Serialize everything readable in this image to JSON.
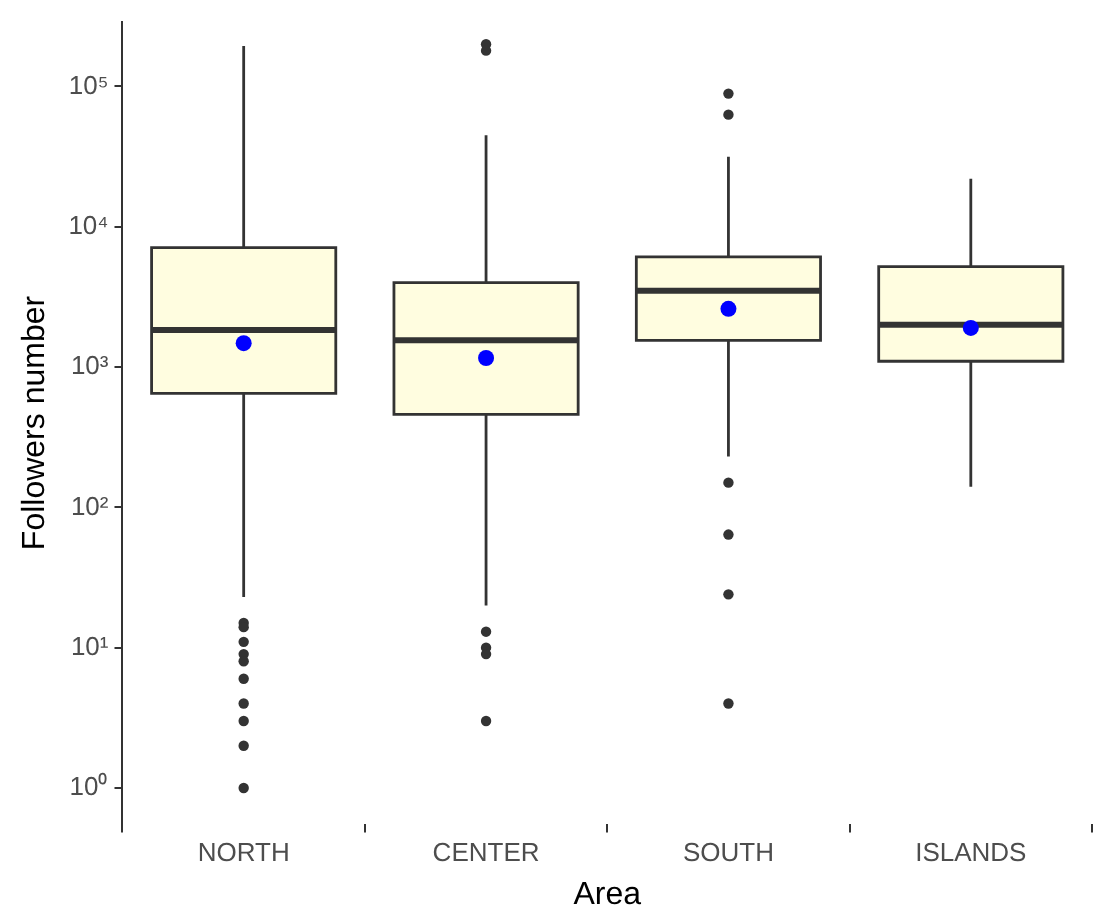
{
  "chart_data": {
    "type": "box",
    "xlabel": "Area",
    "ylabel": "Followers number",
    "categories": [
      "NORTH",
      "CENTER",
      "SOUTH",
      "ISLANDS"
    ],
    "log": "y",
    "grid": false,
    "legend": false,
    "ylim": [
      0.55,
      290000
    ],
    "yticks": [
      {
        "value": 1,
        "label": "10⁰"
      },
      {
        "value": 10,
        "label": "10¹"
      },
      {
        "value": 100,
        "label": "10²"
      },
      {
        "value": 1000,
        "label": "10³"
      },
      {
        "value": 10000,
        "label": "10⁴"
      },
      {
        "value": 100000,
        "label": "10⁵"
      }
    ],
    "series": [
      {
        "color": "#fffde0",
        "boxes": [
          {
            "low": 23,
            "q1": 650,
            "median": 1840,
            "q3": 7100,
            "high": 194000,
            "mean": 1480,
            "outliers": [
              15,
              14,
              11,
              9,
              8,
              6,
              4,
              3,
              2,
              1
            ]
          },
          {
            "low": 20,
            "q1": 460,
            "median": 1550,
            "q3": 4000,
            "high": 45000,
            "mean": 1160,
            "outliers": [
              200000,
              180000,
              13,
              10,
              9,
              3
            ]
          },
          {
            "low": 230,
            "q1": 1550,
            "median": 3500,
            "q3": 6100,
            "high": 31600,
            "mean": 2600,
            "outliers": [
              89000,
              63000,
              150,
              64,
              24,
              4
            ]
          },
          {
            "low": 140,
            "q1": 1100,
            "median": 2000,
            "q3": 5200,
            "high": 22000,
            "mean": 1900
          }
        ]
      }
    ]
  }
}
